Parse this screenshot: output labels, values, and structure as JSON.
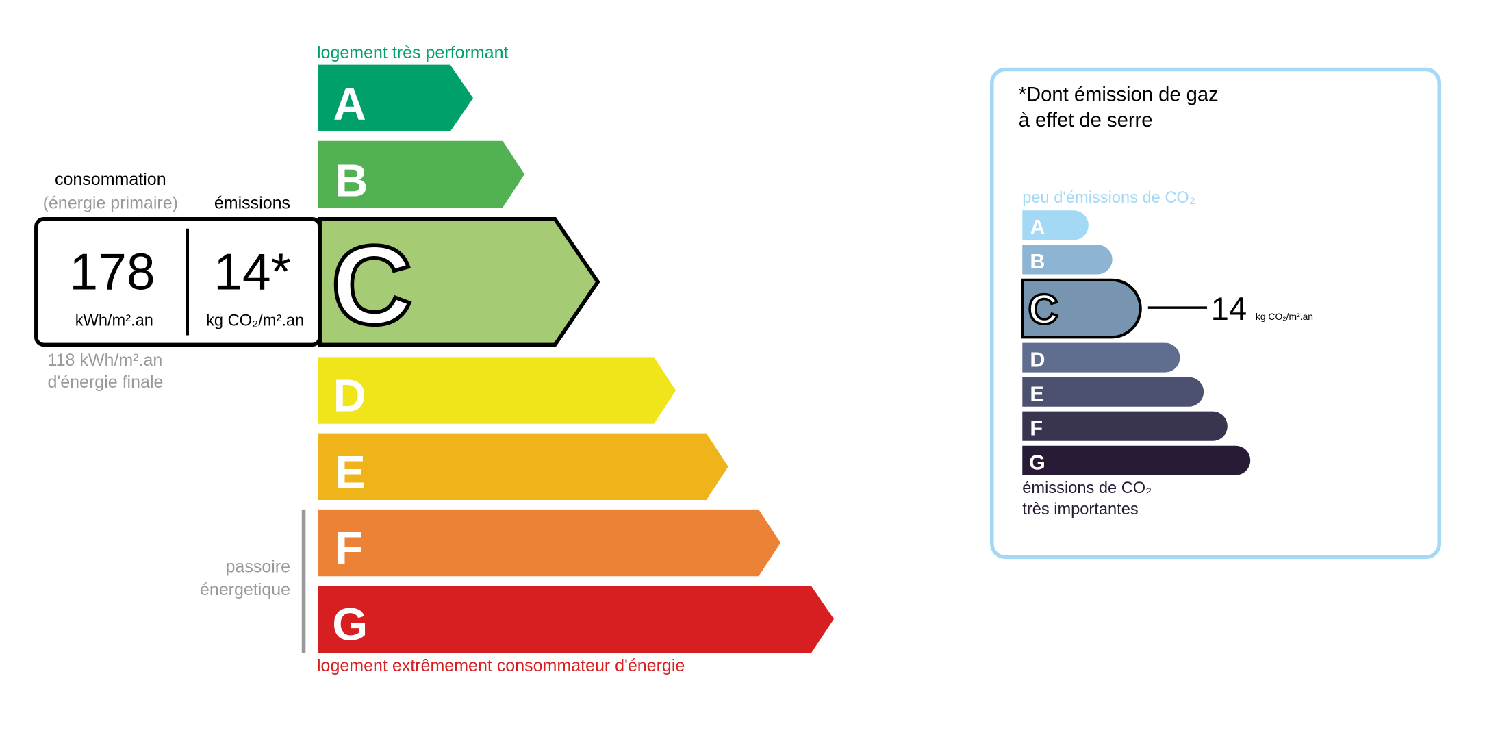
{
  "energy": {
    "top_label": "logement très performant",
    "bottom_label": "logement extrêmement consommateur d'énergie",
    "passoire_line1": "passoire",
    "passoire_line2": "énergetique",
    "classes": [
      {
        "letter": "A",
        "color": "#00a06b"
      },
      {
        "letter": "B",
        "color": "#52b153"
      },
      {
        "letter": "C",
        "color": "#a5cc74"
      },
      {
        "letter": "D",
        "color": "#f0e51b"
      },
      {
        "letter": "E",
        "color": "#efb419"
      },
      {
        "letter": "F",
        "color": "#eb8235"
      },
      {
        "letter": "G",
        "color": "#d71e21"
      }
    ],
    "current_class": "C",
    "consumption_header": "consommation",
    "consumption_subheader": "(énergie primaire)",
    "emissions_header": "émissions",
    "consumption_value": "178",
    "consumption_unit": "kWh/m².an",
    "emissions_value": "14*",
    "emissions_unit": "kg CO₂/m².an",
    "final_energy_line1": "118 kWh/m².an",
    "final_energy_line2": "d'énergie finale"
  },
  "ges": {
    "title_line1": "*Dont émission de gaz",
    "title_line2": "à effet de serre",
    "top_label": "peu d'émissions de CO₂",
    "bottom_label_line1": "émissions de CO₂",
    "bottom_label_line2": "très importantes",
    "classes": [
      {
        "letter": "A",
        "color": "#a3d9f5"
      },
      {
        "letter": "B",
        "color": "#8db4d3"
      },
      {
        "letter": "C",
        "color": "#7794b1"
      },
      {
        "letter": "D",
        "color": "#5f6d8e"
      },
      {
        "letter": "E",
        "color": "#4d5170"
      },
      {
        "letter": "F",
        "color": "#393551"
      },
      {
        "letter": "G",
        "color": "#281b35"
      }
    ],
    "current_class": "C",
    "value": "14",
    "unit": "kg CO₂/m².an",
    "border_color": "#a3d9f5"
  }
}
